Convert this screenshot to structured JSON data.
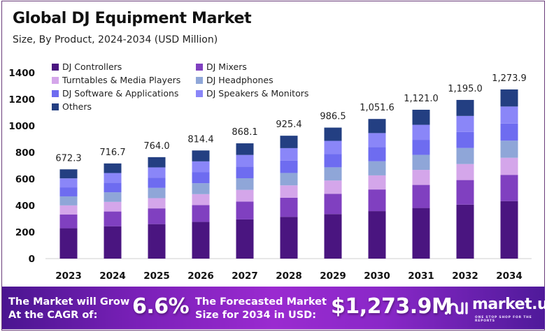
{
  "header": {
    "title": "Global DJ Equipment Market",
    "subtitle": "Size, By Product, 2024-2034 (USD Million)"
  },
  "chart_data": {
    "type": "bar",
    "stacked": true,
    "title": "Global DJ Equipment Market",
    "subtitle": "Size, By Product, 2024-2034 (USD Million)",
    "xlabel": "",
    "ylabel": "",
    "ylim": [
      0,
      1400
    ],
    "yticks": [
      0,
      200,
      400,
      600,
      800,
      1000,
      1200,
      1400
    ],
    "grid": false,
    "legend_position": "top-left",
    "categories": [
      "2023",
      "2024",
      "2025",
      "2026",
      "2027",
      "2028",
      "2029",
      "2030",
      "2031",
      "2032",
      "2034"
    ],
    "totals": [
      672.3,
      716.7,
      764.0,
      814.4,
      868.1,
      925.4,
      986.5,
      1051.6,
      1121.0,
      1195.0,
      1273.9
    ],
    "total_labels": [
      "672.3",
      "716.7",
      "764.0",
      "814.4",
      "868.1",
      "925.4",
      "986.5",
      "1,051.6",
      "1,121.0",
      "1,195.0",
      "1,273.9"
    ],
    "series": [
      {
        "name": "DJ Controllers",
        "color": "#4a1580",
        "values": [
          228.6,
          243.7,
          259.8,
          276.9,
          295.2,
          314.6,
          335.4,
          357.5,
          381.1,
          406.3,
          433.1
        ]
      },
      {
        "name": "DJ Mixers",
        "color": "#8040c0",
        "values": [
          104.2,
          111.1,
          118.4,
          126.2,
          134.6,
          143.4,
          152.9,
          163.0,
          173.8,
          185.2,
          197.5
        ]
      },
      {
        "name": "Turntables & Media Players",
        "color": "#d4a6ea",
        "values": [
          67.9,
          72.4,
          77.2,
          82.3,
          87.7,
          93.5,
          99.6,
          106.2,
          113.2,
          120.7,
          128.7
        ]
      },
      {
        "name": "DJ Headphones",
        "color": "#8fa6d8",
        "values": [
          67.9,
          72.4,
          77.2,
          82.3,
          87.7,
          93.5,
          99.6,
          106.2,
          113.2,
          120.7,
          128.7
        ]
      },
      {
        "name": "DJ Software & Applications",
        "color": "#6e6cf0",
        "values": [
          67.9,
          72.4,
          77.2,
          82.3,
          87.7,
          93.5,
          99.6,
          106.2,
          113.2,
          120.7,
          128.7
        ]
      },
      {
        "name": "DJ Speakers & Monitors",
        "color": "#8a86f8",
        "values": [
          67.9,
          72.4,
          77.2,
          82.3,
          87.7,
          93.5,
          99.6,
          106.2,
          113.2,
          120.7,
          128.7
        ]
      },
      {
        "name": "Others",
        "color": "#233f82",
        "values": [
          67.9,
          72.3,
          77.0,
          82.1,
          87.5,
          93.4,
          99.8,
          106.3,
          113.4,
          120.6,
          128.5
        ]
      }
    ]
  },
  "banner": {
    "cagr_text_line1": "The Market will Grow",
    "cagr_text_line2": "At the CAGR of:",
    "cagr_value": "6.6%",
    "forecast_text_line1": "The Forecasted Market",
    "forecast_text_line2": "Size for 2034 in USD:",
    "forecast_value": "$1,273.9M",
    "logo_name": "market.us",
    "logo_tagline": "ONE STOP SHOP FOR THE REPORTS",
    "logo_icon": "market-us-logo-icon"
  }
}
